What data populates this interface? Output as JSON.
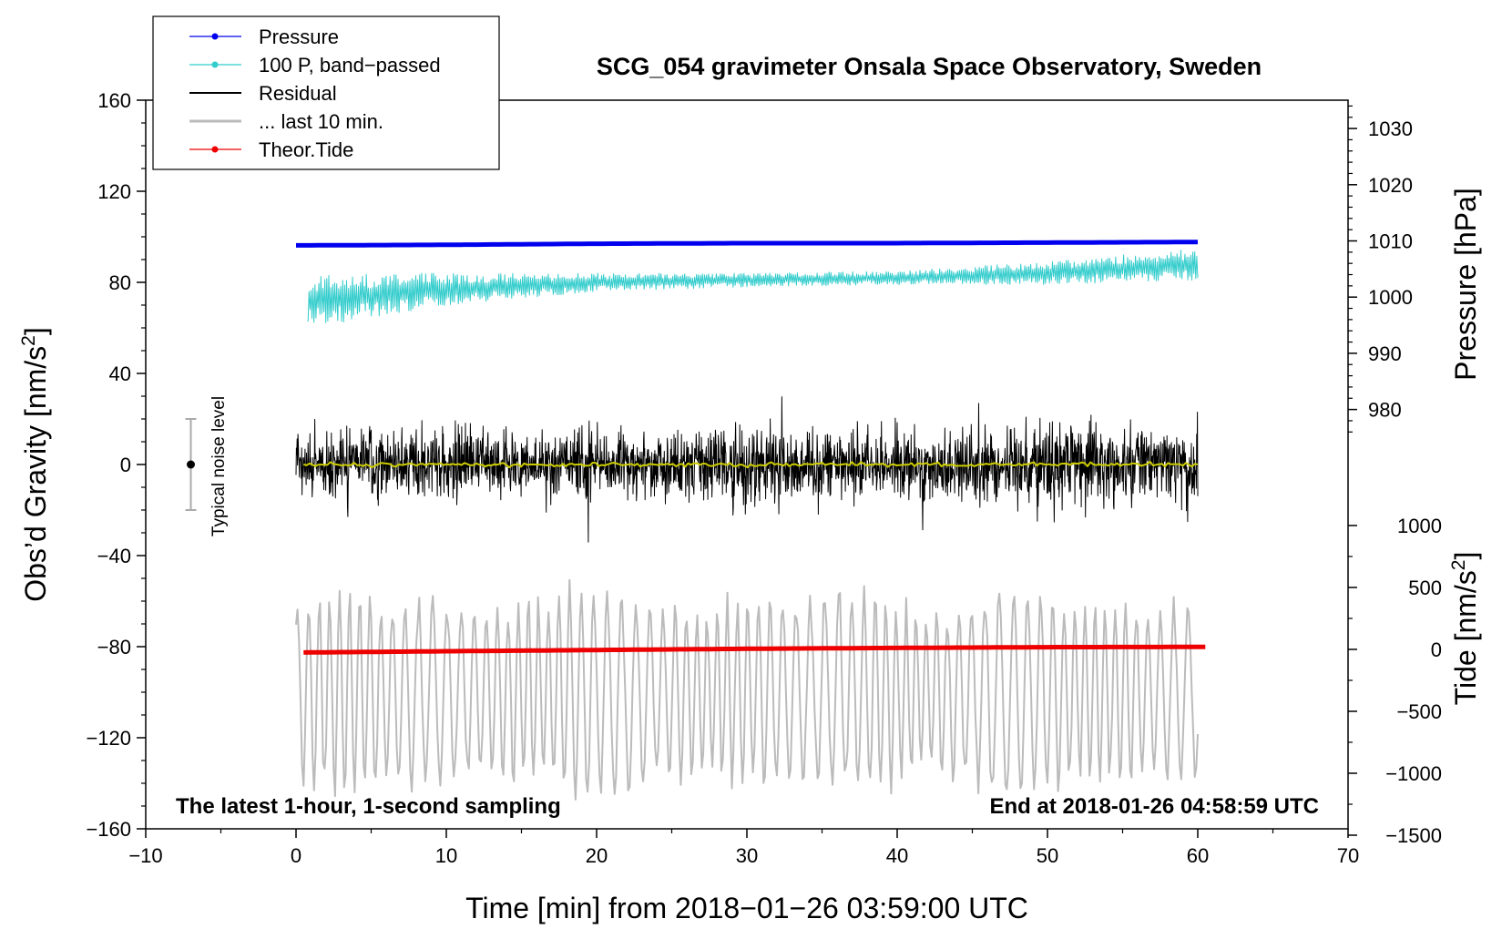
{
  "chart_data": {
    "type": "line",
    "title": "SCG_054 gravimeter Onsala Space Observatory, Sweden",
    "xlabel": "Time [min] from 2018−01−26 03:59:00 UTC",
    "ylabel_left_main": "Obs’d Gravity [nm/s",
    "ylabel_left_sup": "2",
    "ylabel_left_end": "]",
    "ylabel_right_pressure": "Pressure [hPa]",
    "ylabel_right_tide_main": "Tide [nm/s",
    "ylabel_right_tide_sup": "2",
    "ylabel_right_tide_end": "]",
    "xlim": [
      -10,
      70
    ],
    "ylim": [
      -160,
      160
    ],
    "x_ticks": [
      -10,
      0,
      10,
      20,
      30,
      40,
      50,
      60,
      70
    ],
    "x_tick_labels": [
      "−10",
      "0",
      "10",
      "20",
      "30",
      "40",
      "50",
      "60",
      "70"
    ],
    "y_ticks": [
      160,
      120,
      80,
      40,
      0,
      -40,
      -80,
      -120,
      -160
    ],
    "y_tick_labels": [
      "160",
      "120",
      "80",
      "40",
      "0",
      "−40",
      "−80",
      "−120",
      "−160"
    ],
    "pressure_ticks": [
      1030,
      1020,
      1010,
      1000,
      990,
      980
    ],
    "pressure_tick_labels": [
      "1030",
      "1020",
      "1010",
      "1000",
      "990",
      "980"
    ],
    "tide_ticks": [
      1000,
      500,
      0,
      -500,
      -1000,
      -1500
    ],
    "tide_tick_labels": [
      "1000",
      "500",
      "0",
      "−500",
      "−1000",
      "−1500"
    ],
    "annotation_left": "The latest 1-hour, 1-second sampling",
    "annotation_right": "End at 2018-01-26 04:58:59 UTC",
    "noise_label": "Typical noise level",
    "noise_bar": {
      "x": -7,
      "center": 0,
      "low": -20,
      "high": 20
    },
    "legend": [
      {
        "label": "Pressure",
        "color": "#0000ee",
        "marker": true,
        "gray": false
      },
      {
        "label": "100 P, band−passed",
        "color": "#33cccc",
        "marker": true,
        "gray": false
      },
      {
        "label": "Residual",
        "color": "#000000",
        "marker": false,
        "gray": false
      },
      {
        "label": "... last 10 min.",
        "color": "#bbbbbb",
        "marker": false,
        "gray": true
      },
      {
        "label": "Theor.Tide",
        "color": "#ee0000",
        "marker": true,
        "gray": false
      }
    ],
    "series": [
      {
        "name": "Pressure",
        "axis": "pressure",
        "color": "#0000ee",
        "x": [
          0,
          10,
          20,
          30,
          40,
          50,
          60
        ],
        "values": [
          1009.2,
          1009.3,
          1009.5,
          1009.6,
          1009.6,
          1009.7,
          1009.8
        ]
      },
      {
        "name": "100 P, band-passed",
        "axis": "left",
        "color": "#33cccc",
        "x": [
          0.8,
          10,
          20,
          30,
          40,
          50,
          60
        ],
        "values": [
          72,
          77,
          80,
          81,
          82,
          84,
          88
        ],
        "spread": [
          12,
          7,
          4,
          3,
          3,
          5,
          7
        ]
      },
      {
        "name": "Residual",
        "axis": "left",
        "color": "#000000",
        "x": [
          0,
          10,
          20,
          30,
          40,
          50,
          60
        ],
        "values": [
          0,
          0,
          0,
          0,
          0,
          0,
          0
        ],
        "spread": [
          22,
          22,
          20,
          24,
          24,
          24,
          26
        ]
      },
      {
        "name": "Residual smoothed",
        "axis": "left",
        "color": "#cccc00",
        "x": [
          0.5,
          60
        ],
        "values": [
          0,
          0
        ]
      },
      {
        "name": "... last 10 min.",
        "axis": "left",
        "color": "#bbbbbb",
        "x": [
          0,
          60
        ],
        "values": [
          -100,
          -100
        ],
        "spread": [
          30,
          30
        ]
      },
      {
        "name": "Theor.Tide",
        "axis": "tide",
        "color": "#ee0000",
        "x": [
          0.5,
          10,
          20,
          30,
          40,
          50,
          60.5
        ],
        "values": [
          -25,
          -15,
          -5,
          5,
          12,
          18,
          20
        ]
      }
    ]
  }
}
